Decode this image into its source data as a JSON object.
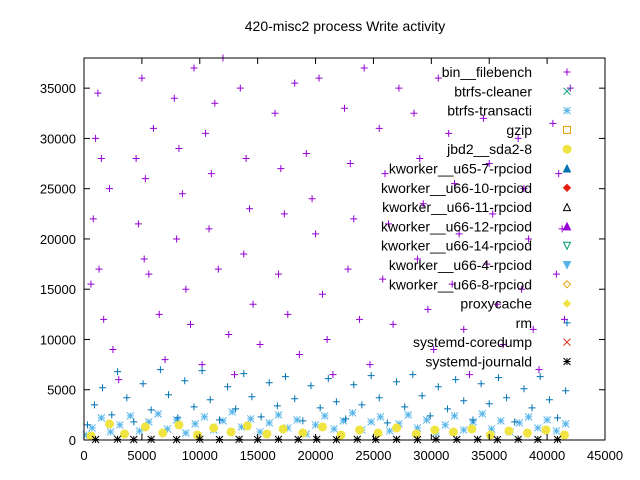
{
  "chart_data": {
    "type": "scatter",
    "title": "420-misc2 process Write activity",
    "xlabel": "",
    "ylabel": "",
    "xlim": [
      0,
      45000
    ],
    "ylim": [
      0,
      38000
    ],
    "x_ticks": [
      "0",
      "5000",
      "10000",
      "15000",
      "20000",
      "25000",
      "30000",
      "35000",
      "40000",
      "45000"
    ],
    "y_ticks": [
      "0",
      "5000",
      "10000",
      "15000",
      "20000",
      "25000",
      "30000",
      "35000"
    ],
    "grid": false,
    "legend_position": "top-right",
    "series": [
      {
        "name": "bin__filebench",
        "color": "#9400d3",
        "marker": "plus",
        "points": [
          [
            1000,
            30000
          ],
          [
            1200,
            34500
          ],
          [
            1500,
            28000
          ],
          [
            800,
            22000
          ],
          [
            1300,
            17000
          ],
          [
            600,
            15500
          ],
          [
            1700,
            12000
          ],
          [
            2200,
            25000
          ],
          [
            2500,
            9000
          ],
          [
            3000,
            6000
          ],
          [
            4500,
            28000
          ],
          [
            5000,
            36000
          ],
          [
            5300,
            26000
          ],
          [
            4700,
            21500
          ],
          [
            5600,
            16500
          ],
          [
            6000,
            31000
          ],
          [
            5200,
            18000
          ],
          [
            6500,
            12500
          ],
          [
            7000,
            8000
          ],
          [
            7800,
            34000
          ],
          [
            8200,
            29000
          ],
          [
            8500,
            24500
          ],
          [
            8000,
            20000
          ],
          [
            8800,
            15000
          ],
          [
            9200,
            11500
          ],
          [
            9500,
            37000
          ],
          [
            10200,
            7500
          ],
          [
            10500,
            30500
          ],
          [
            11000,
            26500
          ],
          [
            11300,
            33500
          ],
          [
            10800,
            21000
          ],
          [
            11600,
            17000
          ],
          [
            12000,
            38000
          ],
          [
            12500,
            10500
          ],
          [
            13000,
            6500
          ],
          [
            13500,
            35000
          ],
          [
            14000,
            28000
          ],
          [
            14300,
            23000
          ],
          [
            13800,
            18500
          ],
          [
            14600,
            13500
          ],
          [
            15200,
            9500
          ],
          [
            16500,
            32500
          ],
          [
            17000,
            27000
          ],
          [
            17300,
            22500
          ],
          [
            16800,
            16500
          ],
          [
            17600,
            12500
          ],
          [
            18200,
            35500
          ],
          [
            18600,
            8500
          ],
          [
            19200,
            28500
          ],
          [
            19700,
            24000
          ],
          [
            20000,
            20500
          ],
          [
            20300,
            36000
          ],
          [
            20600,
            14500
          ],
          [
            21000,
            10000
          ],
          [
            21500,
            6500
          ],
          [
            22500,
            33000
          ],
          [
            23000,
            27500
          ],
          [
            23300,
            22000
          ],
          [
            22800,
            17000
          ],
          [
            23800,
            12000
          ],
          [
            24200,
            37000
          ],
          [
            24700,
            7500
          ],
          [
            25500,
            31000
          ],
          [
            26000,
            26500
          ],
          [
            26300,
            21500
          ],
          [
            25800,
            16000
          ],
          [
            26700,
            11500
          ],
          [
            27200,
            35000
          ],
          [
            28500,
            32500
          ],
          [
            29000,
            28000
          ],
          [
            29300,
            23500
          ],
          [
            28800,
            18000
          ],
          [
            29700,
            13000
          ],
          [
            30200,
            9000
          ],
          [
            30600,
            36000
          ],
          [
            31500,
            30500
          ],
          [
            32000,
            25500
          ],
          [
            32400,
            20500
          ],
          [
            31800,
            15500
          ],
          [
            32800,
            11000
          ],
          [
            33300,
            6500
          ],
          [
            34500,
            32000
          ],
          [
            35000,
            27500
          ],
          [
            35300,
            22500
          ],
          [
            34800,
            17500
          ],
          [
            35700,
            13500
          ],
          [
            36200,
            9500
          ],
          [
            37500,
            30000
          ],
          [
            38000,
            25000
          ],
          [
            38400,
            20000
          ],
          [
            37800,
            15000
          ],
          [
            38800,
            11000
          ],
          [
            39300,
            7000
          ],
          [
            40500,
            31500
          ],
          [
            41000,
            26500
          ],
          [
            41300,
            21000
          ],
          [
            40800,
            16500
          ],
          [
            41500,
            12000
          ],
          [
            42000,
            35000
          ]
        ]
      },
      {
        "name": "btrfs-cleaner",
        "color": "#009e73",
        "marker": "cross",
        "points": []
      },
      {
        "name": "btrfs-transacti",
        "color": "#56b4e9",
        "marker": "star",
        "points": [
          [
            200,
            500
          ],
          [
            700,
            1200
          ],
          [
            1500,
            2200
          ],
          [
            2300,
            800
          ],
          [
            3100,
            1500
          ],
          [
            4000,
            2400
          ],
          [
            4800,
            900
          ],
          [
            5600,
            1800
          ],
          [
            6400,
            2600
          ],
          [
            7200,
            1100
          ],
          [
            8000,
            2000
          ],
          [
            8800,
            700
          ],
          [
            9600,
            1600
          ],
          [
            10400,
            2300
          ],
          [
            11200,
            1000
          ],
          [
            12000,
            1900
          ],
          [
            12800,
            2800
          ],
          [
            13600,
            1300
          ],
          [
            14400,
            2100
          ],
          [
            15200,
            800
          ],
          [
            16000,
            1700
          ],
          [
            16800,
            2500
          ],
          [
            17600,
            1200
          ],
          [
            18400,
            2000
          ],
          [
            19200,
            600
          ],
          [
            20000,
            1500
          ],
          [
            20800,
            2400
          ],
          [
            21600,
            1100
          ],
          [
            22400,
            1900
          ],
          [
            23200,
            2700
          ],
          [
            24000,
            1000
          ],
          [
            24800,
            1800
          ],
          [
            25600,
            2300
          ],
          [
            26400,
            900
          ],
          [
            27200,
            1600
          ],
          [
            28000,
            2500
          ],
          [
            28800,
            1200
          ],
          [
            29600,
            2000
          ],
          [
            30400,
            700
          ],
          [
            31200,
            1500
          ],
          [
            32000,
            2400
          ],
          [
            32800,
            1000
          ],
          [
            33600,
            1800
          ],
          [
            34400,
            2600
          ],
          [
            35200,
            1100
          ],
          [
            36000,
            1900
          ],
          [
            36800,
            800
          ],
          [
            37600,
            1700
          ],
          [
            38400,
            2300
          ],
          [
            39200,
            1200
          ],
          [
            40000,
            2000
          ],
          [
            40800,
            900
          ],
          [
            41600,
            1600
          ]
        ]
      },
      {
        "name": "gzip",
        "color": "#e69f00",
        "marker": "square",
        "points": []
      },
      {
        "name": "jbd2__sda2-8",
        "color": "#f0e442",
        "marker": "circle",
        "points": [
          [
            600,
            400
          ],
          [
            2200,
            1600
          ],
          [
            3500,
            600
          ],
          [
            5300,
            1300
          ],
          [
            6800,
            700
          ],
          [
            8200,
            1500
          ],
          [
            9800,
            500
          ],
          [
            11200,
            1200
          ],
          [
            12700,
            800
          ],
          [
            14100,
            1400
          ],
          [
            15800,
            600
          ],
          [
            17200,
            1100
          ],
          [
            18900,
            700
          ],
          [
            20600,
            1300
          ],
          [
            22200,
            500
          ],
          [
            23800,
            1000
          ],
          [
            25400,
            700
          ],
          [
            27000,
            1200
          ],
          [
            28700,
            600
          ],
          [
            30300,
            1000
          ],
          [
            31900,
            800
          ],
          [
            33500,
            1100
          ],
          [
            35100,
            500
          ],
          [
            36700,
            900
          ],
          [
            38300,
            700
          ],
          [
            39900,
            1000
          ],
          [
            41500,
            500
          ]
        ]
      },
      {
        "name": "kworker__u65-7-rpciod",
        "color": "#0072b2",
        "marker": "triangle",
        "points": []
      },
      {
        "name": "kworker__u66-10-rpciod",
        "color": "#e51e10",
        "marker": "diamond",
        "points": []
      },
      {
        "name": "kworker__u66-11-rpciod",
        "color": "#000000",
        "marker": "triangle-open",
        "points": []
      },
      {
        "name": "kworker__u66-12-rpciod",
        "color": "#9400d3",
        "marker": "triangle",
        "points": []
      },
      {
        "name": "kworker__u66-14-rpciod",
        "color": "#009e73",
        "marker": "triangle-down-open",
        "points": []
      },
      {
        "name": "kworker__u66-4-rpciod",
        "color": "#56b4e9",
        "marker": "triangle-down",
        "points": []
      },
      {
        "name": "kworker__u66-8-rpciod",
        "color": "#e69f00",
        "marker": "diamond-open",
        "points": []
      },
      {
        "name": "proxycache",
        "color": "#f0e442",
        "marker": "diamond",
        "points": []
      },
      {
        "name": "rm",
        "color": "#0072b2",
        "marker": "plus",
        "points": [
          [
            300,
            1500
          ],
          [
            900,
            3500
          ],
          [
            1600,
            5200
          ],
          [
            2400,
            2500
          ],
          [
            2900,
            6800
          ],
          [
            3700,
            4200
          ],
          [
            4300,
            1800
          ],
          [
            5100,
            5600
          ],
          [
            5800,
            3000
          ],
          [
            6600,
            7000
          ],
          [
            7300,
            4500
          ],
          [
            8100,
            2200
          ],
          [
            8700,
            5900
          ],
          [
            9500,
            3300
          ],
          [
            10200,
            6900
          ],
          [
            10900,
            4000
          ],
          [
            11700,
            2000
          ],
          [
            12400,
            5300
          ],
          [
            13100,
            3100
          ],
          [
            13800,
            6600
          ],
          [
            14500,
            4300
          ],
          [
            15300,
            2300
          ],
          [
            16000,
            5700
          ],
          [
            16700,
            3400
          ],
          [
            17400,
            6300
          ],
          [
            18200,
            4100
          ],
          [
            18900,
            1900
          ],
          [
            19600,
            5400
          ],
          [
            20400,
            3200
          ],
          [
            21100,
            6100
          ],
          [
            21800,
            3800
          ],
          [
            22600,
            2100
          ],
          [
            23300,
            5500
          ],
          [
            24000,
            3500
          ],
          [
            24800,
            6400
          ],
          [
            25500,
            4200
          ],
          [
            26200,
            1700
          ],
          [
            27000,
            5800
          ],
          [
            27700,
            3300
          ],
          [
            28400,
            6500
          ],
          [
            29200,
            4400
          ],
          [
            29900,
            2400
          ],
          [
            30600,
            5300
          ],
          [
            31400,
            3100
          ],
          [
            32100,
            6000
          ],
          [
            32800,
            3900
          ],
          [
            33600,
            2000
          ],
          [
            34300,
            5600
          ],
          [
            35000,
            3600
          ],
          [
            35800,
            6200
          ],
          [
            36500,
            4200
          ],
          [
            37200,
            1800
          ],
          [
            38000,
            5100
          ],
          [
            38700,
            3200
          ],
          [
            39400,
            6300
          ],
          [
            40200,
            4000
          ],
          [
            40900,
            2200
          ],
          [
            41600,
            4900
          ]
        ]
      },
      {
        "name": "systemd-coredump",
        "color": "#e51e10",
        "marker": "cross",
        "points": []
      },
      {
        "name": "systemd-journald",
        "color": "#000000",
        "marker": "star",
        "points": [
          [
            1000,
            50
          ],
          [
            2900,
            80
          ],
          [
            4300,
            50
          ],
          [
            5800,
            60
          ],
          [
            8000,
            40
          ],
          [
            10000,
            70
          ],
          [
            11700,
            50
          ],
          [
            13400,
            60
          ],
          [
            15000,
            40
          ],
          [
            16800,
            70
          ],
          [
            18500,
            50
          ],
          [
            20100,
            60
          ],
          [
            21800,
            40
          ],
          [
            23600,
            70
          ],
          [
            25200,
            50
          ],
          [
            27000,
            60
          ],
          [
            28800,
            40
          ],
          [
            30400,
            70
          ],
          [
            32200,
            50
          ],
          [
            34000,
            60
          ],
          [
            35700,
            40
          ],
          [
            37500,
            70
          ],
          [
            39200,
            50
          ],
          [
            40900,
            60
          ]
        ]
      }
    ]
  }
}
